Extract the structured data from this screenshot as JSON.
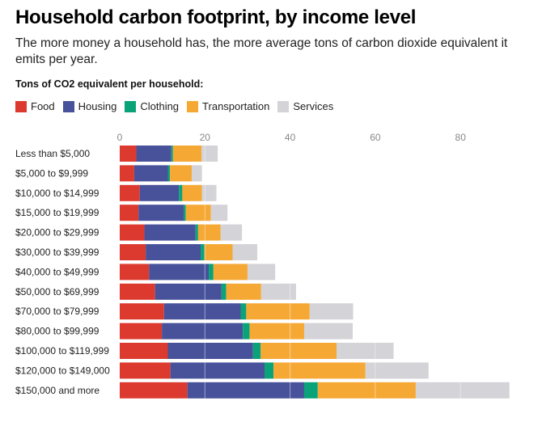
{
  "header": {
    "title": "Household carbon footprint, by income level",
    "subtitle": "The more money a household has, the more average tons of carbon dioxide equivalent it emits per year.",
    "units_label": "Tons of CO2 equivalent per household:"
  },
  "legend": [
    {
      "name": "Food",
      "color": "#dc3a2e"
    },
    {
      "name": "Housing",
      "color": "#47529b"
    },
    {
      "name": "Clothing",
      "color": "#0aa379"
    },
    {
      "name": "Transportation",
      "color": "#f6a834"
    },
    {
      "name": "Services",
      "color": "#d3d3d8"
    }
  ],
  "chart_data": {
    "type": "bar",
    "orientation": "horizontal",
    "stacked": true,
    "title": "Household carbon footprint, by income level",
    "subtitle": "The more money a household has, the more average tons of carbon dioxide equivalent it emits per year.",
    "xlabel": "Tons of CO2 equivalent per household",
    "ylabel": "",
    "xlim": [
      0,
      92
    ],
    "xticks": [
      0,
      20,
      40,
      60,
      80
    ],
    "grid": true,
    "legend_position": "top-left",
    "categories": [
      "Less than $5,000",
      "$5,000 to $9,999",
      "$10,000 to $14,999",
      "$15,000 to $19,999",
      "$20,000 to $29,999",
      "$30,000 to $39,999",
      "$40,000 to $49,999",
      "$50,000 to $69,999",
      "$70,000 to $79,999",
      "$80,000 to $99,999",
      "$100,000 to $119,999",
      "$120,000 to $149,000",
      "$150,000 and more"
    ],
    "series": [
      {
        "name": "Food",
        "color": "#dc3a2e",
        "values": [
          3.9,
          3.4,
          4.7,
          4.4,
          5.8,
          6.1,
          6.9,
          8.3,
          10.4,
          9.9,
          11.3,
          11.9,
          15.9
        ]
      },
      {
        "name": "Housing",
        "color": "#47529b",
        "values": [
          8.2,
          7.9,
          9.2,
          10.6,
          12.0,
          12.9,
          14.0,
          15.6,
          18.0,
          19.0,
          20.0,
          22.1,
          27.4
        ]
      },
      {
        "name": "Clothing",
        "color": "#0aa379",
        "values": [
          0.4,
          0.5,
          0.8,
          0.5,
          0.6,
          0.9,
          1.1,
          1.1,
          1.3,
          1.6,
          1.8,
          2.1,
          3.2
        ]
      },
      {
        "name": "Transportation",
        "color": "#f6a834",
        "values": [
          6.7,
          5.1,
          4.6,
          5.9,
          5.3,
          6.6,
          8.0,
          8.2,
          14.9,
          12.8,
          17.8,
          21.6,
          23.0
        ]
      },
      {
        "name": "Services",
        "color": "#d3d3d8",
        "values": [
          3.8,
          2.4,
          3.4,
          3.9,
          5.0,
          5.8,
          6.5,
          8.2,
          10.2,
          11.4,
          13.4,
          14.8,
          22.0
        ]
      }
    ]
  }
}
